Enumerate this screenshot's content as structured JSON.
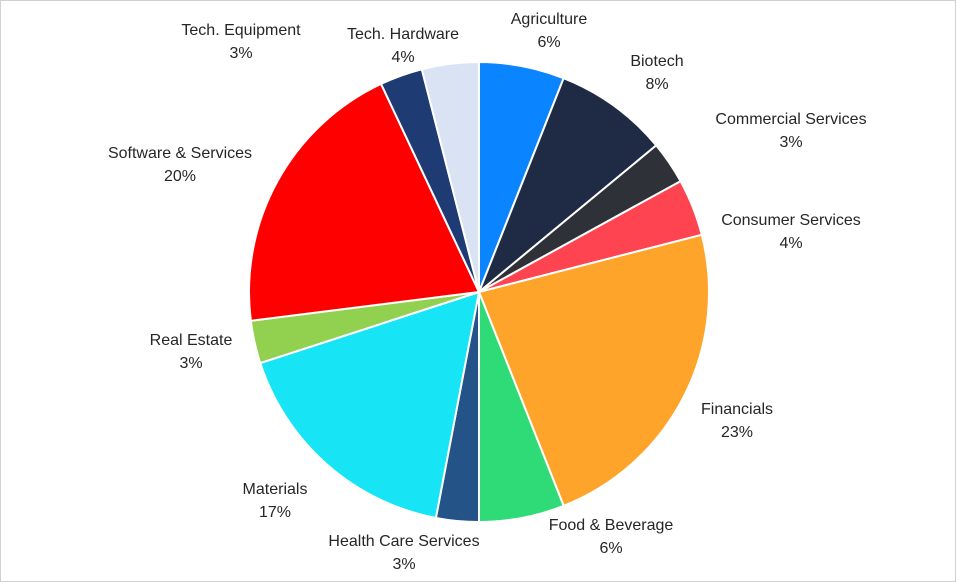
{
  "chart_data": {
    "type": "pie",
    "title": "",
    "slices": [
      {
        "label": "Agriculture",
        "value": 6,
        "pct_label": "6%",
        "color": "#0A84FF"
      },
      {
        "label": "Biotech",
        "value": 8,
        "pct_label": "8%",
        "color": "#1F2A44"
      },
      {
        "label": "Commercial Services",
        "value": 3,
        "pct_label": "3%",
        "color": "#2E3138"
      },
      {
        "label": "Consumer Services",
        "value": 4,
        "pct_label": "4%",
        "color": "#FF4451"
      },
      {
        "label": "Financials",
        "value": 23,
        "pct_label": "23%",
        "color": "#FFA42B"
      },
      {
        "label": "Food & Beverage",
        "value": 6,
        "pct_label": "6%",
        "color": "#2EDB76"
      },
      {
        "label": "Health Care Services",
        "value": 3,
        "pct_label": "3%",
        "color": "#235387"
      },
      {
        "label": "Materials",
        "value": 17,
        "pct_label": "17%",
        "color": "#17E4F4"
      },
      {
        "label": "Real Estate",
        "value": 3,
        "pct_label": "3%",
        "color": "#92D050"
      },
      {
        "label": "Software & Services",
        "value": 20,
        "pct_label": "20%",
        "color": "#FF0000"
      },
      {
        "label": "Tech. Equipment",
        "value": 3,
        "pct_label": "3%",
        "color": "#1F3B73"
      },
      {
        "label": "Tech. Hardware",
        "value": 4,
        "pct_label": "4%",
        "color": "#DAE3F3"
      }
    ]
  }
}
